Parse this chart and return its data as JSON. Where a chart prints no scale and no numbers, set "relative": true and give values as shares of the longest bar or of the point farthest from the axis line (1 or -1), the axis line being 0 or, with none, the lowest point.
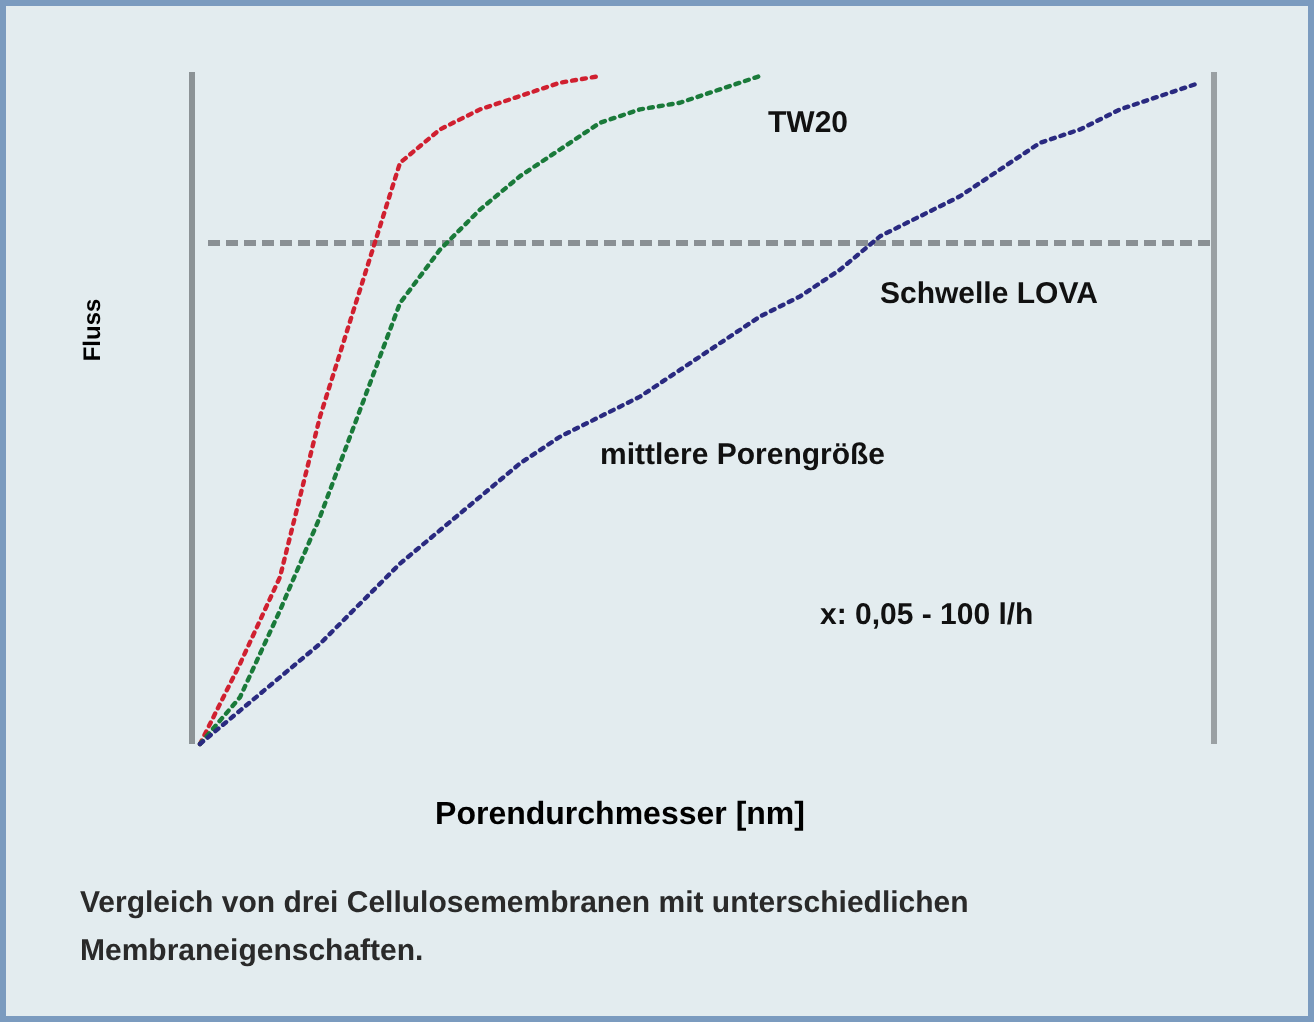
{
  "chart_data": {
    "type": "line",
    "relative": true,
    "xlabel": "Porendurchmesser [nm]",
    "ylabel": "Fluss",
    "categories": [
      null,
      null,
      null,
      null,
      null,
      null,
      null,
      null,
      null,
      null,
      null,
      null,
      null,
      null,
      null,
      null,
      null,
      null,
      null,
      null,
      null,
      null,
      null,
      null,
      null,
      null
    ],
    "grid": false,
    "line_style": "dotted",
    "series": [
      {
        "color": "#d02030",
        "values": [
          0,
          0.12,
          0.25,
          0.49,
          0.68,
          0.87,
          0.92,
          0.95,
          0.97,
          0.99,
          1,
          null,
          null,
          null,
          null,
          null,
          null,
          null,
          null,
          null,
          null,
          null,
          null,
          null,
          null,
          null
        ]
      },
      {
        "color": "#1a7a3a",
        "values": [
          0,
          0.07,
          0.2,
          0.34,
          0.5,
          0.66,
          0.74,
          0.8,
          0.85,
          0.89,
          0.93,
          0.95,
          0.96,
          0.98,
          1,
          null,
          null,
          null,
          null,
          null,
          null,
          null,
          null,
          null,
          null,
          null
        ]
      },
      {
        "color": "#2a2a80",
        "values": [
          0,
          0.05,
          0.1,
          0.15,
          0.21,
          0.27,
          0.32,
          0.37,
          0.42,
          0.46,
          0.49,
          0.52,
          0.56,
          0.6,
          0.64,
          0.67,
          0.71,
          0.76,
          0.79,
          0.82,
          0.86,
          0.9,
          0.92,
          0.95,
          0.97,
          0.99
        ]
      }
    ],
    "ref_lines": [
      {
        "axis": "y",
        "value": 0.75,
        "label": "Schwelle LOVA",
        "color": "#8a9094",
        "line_style": "dashed"
      }
    ],
    "annotations": [
      "TW20",
      "mittlere Porengröße",
      "x: 0,05 - 100 l/h",
      "Vergleich von drei Cellulosemembranen mit unterschiedlichen Membraneigenschaften."
    ]
  }
}
